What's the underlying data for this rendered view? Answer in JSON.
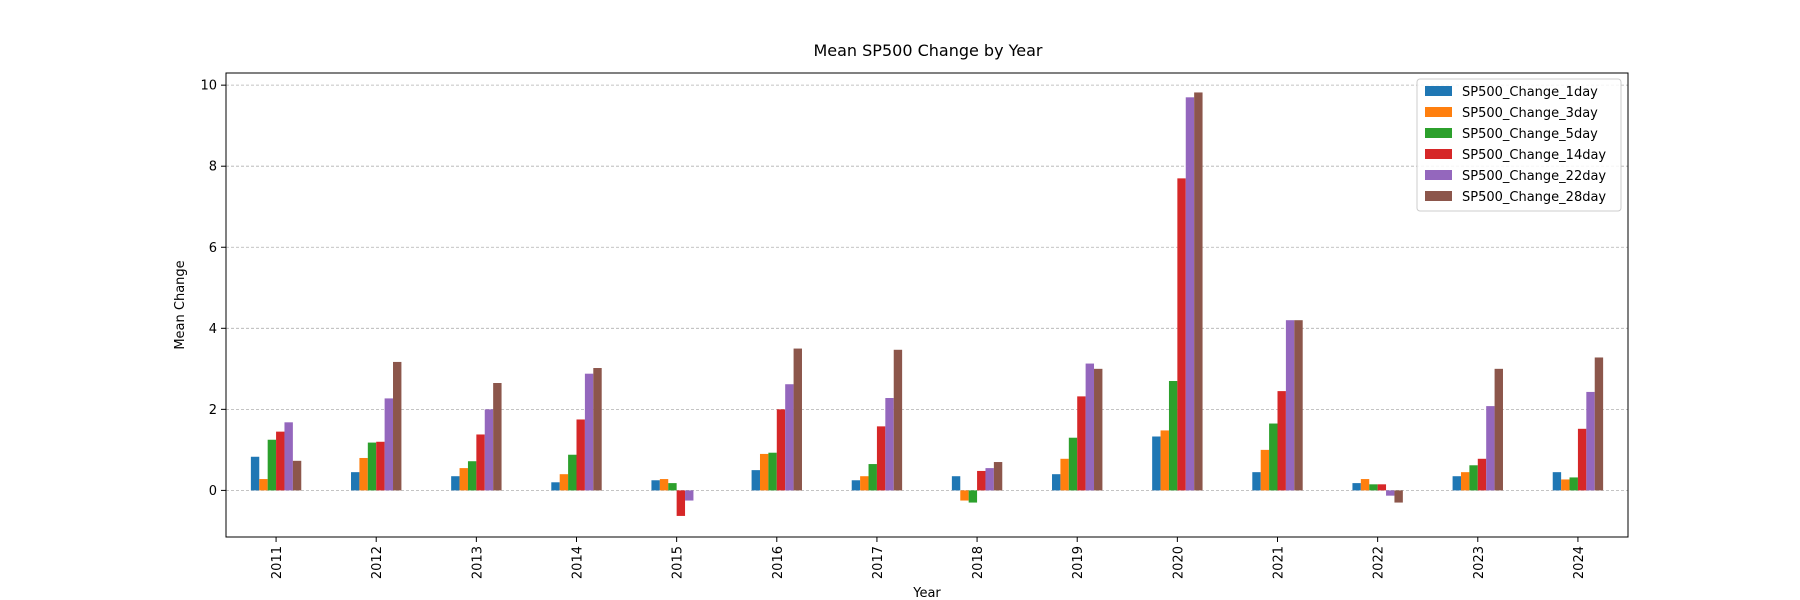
{
  "chart_data": {
    "type": "bar",
    "title": "Mean SP500 Change by Year",
    "xlabel": "Year",
    "ylabel": "Mean Change",
    "ylim": [
      -1.15,
      10.3
    ],
    "yticks": [
      0,
      2,
      4,
      6,
      8,
      10
    ],
    "grid": true,
    "legend_position": "top-right",
    "categories": [
      "2011",
      "2012",
      "2013",
      "2014",
      "2015",
      "2016",
      "2017",
      "2018",
      "2019",
      "2020",
      "2021",
      "2022",
      "2023",
      "2024"
    ],
    "series": [
      {
        "name": "SP500_Change_1day",
        "color": "#1f77b4",
        "values": [
          0.83,
          0.45,
          0.35,
          0.2,
          0.25,
          0.5,
          0.25,
          0.35,
          0.4,
          1.33,
          0.45,
          0.18,
          0.35,
          0.45
        ]
      },
      {
        "name": "SP500_Change_3day",
        "color": "#ff7f0e",
        "values": [
          0.28,
          0.8,
          0.55,
          0.4,
          0.28,
          0.9,
          0.35,
          -0.25,
          0.78,
          1.48,
          1.0,
          0.28,
          0.45,
          0.27
        ]
      },
      {
        "name": "SP500_Change_5day",
        "color": "#2ca02c",
        "values": [
          1.25,
          1.18,
          0.72,
          0.88,
          0.18,
          0.93,
          0.65,
          -0.3,
          1.3,
          2.7,
          1.65,
          0.15,
          0.62,
          0.32
        ]
      },
      {
        "name": "SP500_Change_14day",
        "color": "#d62728",
        "values": [
          1.45,
          1.2,
          1.38,
          1.75,
          -0.63,
          2.0,
          1.58,
          0.48,
          2.32,
          7.7,
          2.45,
          0.15,
          0.78,
          1.52
        ]
      },
      {
        "name": "SP500_Change_22day",
        "color": "#9467bd",
        "values": [
          1.68,
          2.27,
          2.0,
          2.88,
          -0.25,
          2.62,
          2.28,
          0.55,
          3.13,
          9.7,
          4.2,
          -0.13,
          2.08,
          2.43
        ]
      },
      {
        "name": "SP500_Change_28day",
        "color": "#8c564b",
        "values": [
          0.73,
          3.17,
          2.65,
          3.02,
          0.0,
          3.5,
          3.47,
          0.7,
          3.0,
          9.82,
          4.2,
          -0.3,
          3.0,
          3.28
        ]
      }
    ]
  }
}
